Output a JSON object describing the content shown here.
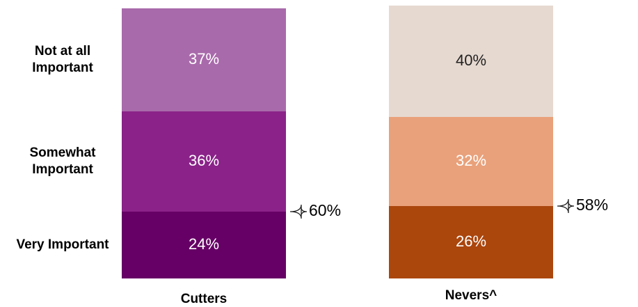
{
  "chart_data": {
    "type": "stacked_bar",
    "categories": [
      "Cutters",
      "Nevers^"
    ],
    "series": [
      {
        "name": "Very Important",
        "colors": [
          "#660066",
          "#ab460d"
        ],
        "values": [
          24,
          26
        ],
        "value_labels": [
          "24%",
          "26%"
        ]
      },
      {
        "name": "Somewhat Important",
        "colors": [
          "#8a2289",
          "#e9a17b"
        ],
        "values": [
          36,
          32
        ],
        "value_labels": [
          "36%",
          "32%"
        ]
      },
      {
        "name": "Not at all Important",
        "colors": [
          "#a96aab",
          "#e6d9d0"
        ],
        "values": [
          37,
          40
        ],
        "value_labels": [
          "37%",
          "40%"
        ]
      }
    ],
    "brackets": {
      "values": [
        60,
        58
      ],
      "value_labels": [
        "60%",
        "58%"
      ]
    }
  }
}
